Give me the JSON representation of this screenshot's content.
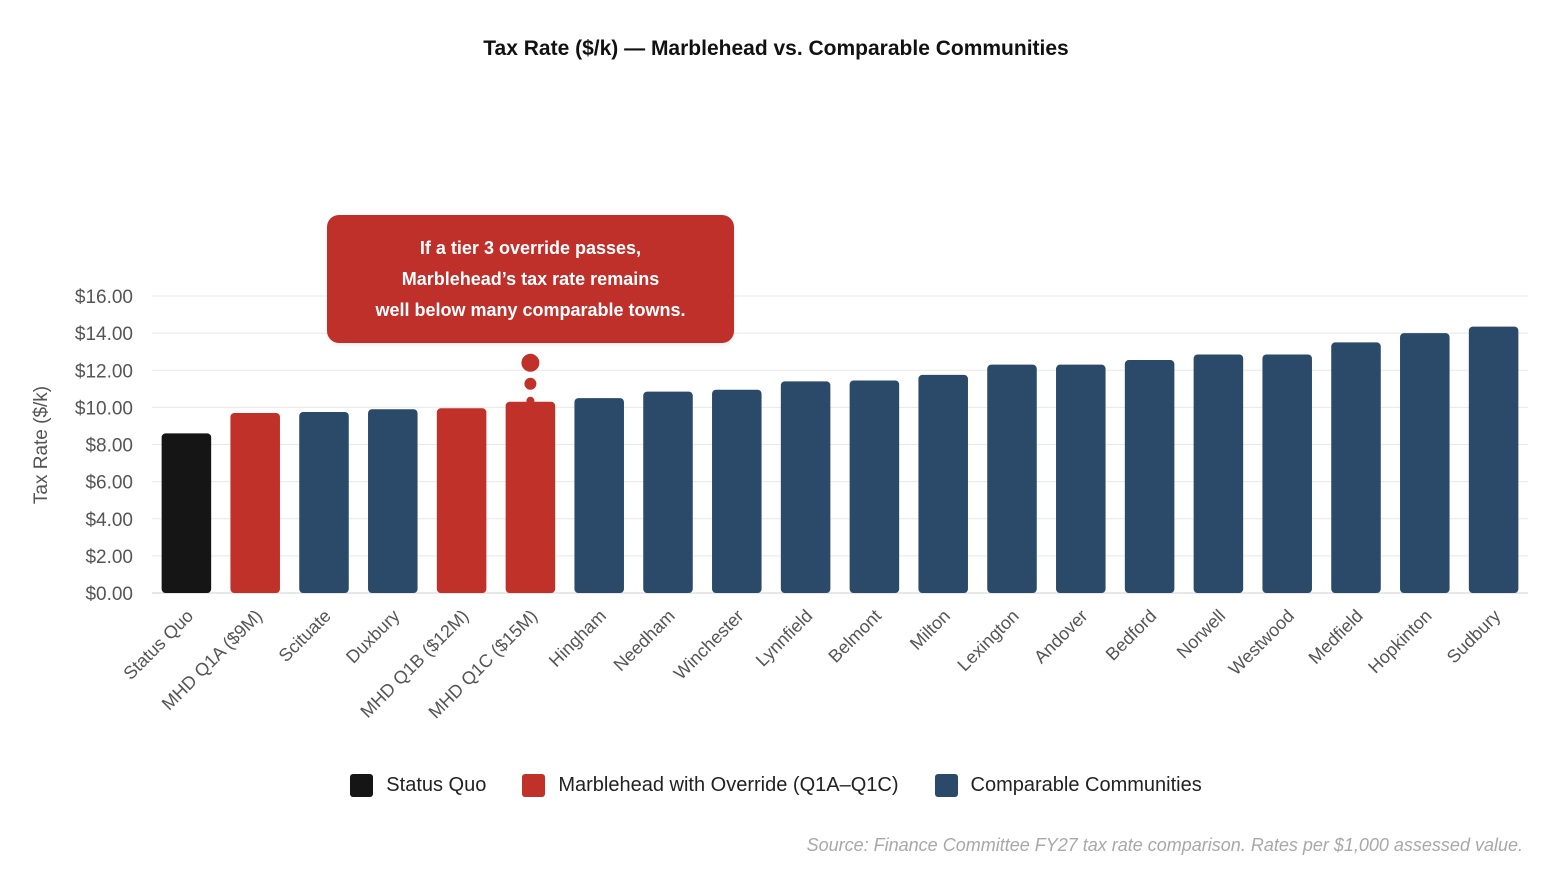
{
  "chart_data": {
    "type": "bar",
    "title": "Tax Rate ($/k) — Marblehead vs. Comparable Communities",
    "ylabel": "Tax Rate ($/k)",
    "xlabel": "",
    "ylim": [
      0,
      16
    ],
    "y_ticks": [
      "$0.00",
      "$2.00",
      "$4.00",
      "$6.00",
      "$8.00",
      "$10.00",
      "$12.00",
      "$14.00",
      "$16.00"
    ],
    "categories": [
      "Status Quo",
      "MHD Q1A ($9M)",
      "Scituate",
      "Duxbury",
      "MHD Q1B ($12M)",
      "MHD Q1C ($15M)",
      "Hingham",
      "Needham",
      "Winchester",
      "Lynnfield",
      "Belmont",
      "Milton",
      "Lexington",
      "Andover",
      "Bedford",
      "Norwell",
      "Westwood",
      "Medfield",
      "Hopkinton",
      "Sudbury"
    ],
    "values": [
      8.6,
      9.7,
      9.75,
      9.9,
      9.95,
      10.3,
      10.5,
      10.85,
      10.95,
      11.4,
      11.45,
      11.75,
      12.3,
      12.3,
      12.55,
      12.85,
      12.85,
      13.5,
      14.0,
      14.35
    ],
    "groups": [
      "status_quo",
      "override",
      "comparable",
      "comparable",
      "override",
      "override",
      "comparable",
      "comparable",
      "comparable",
      "comparable",
      "comparable",
      "comparable",
      "comparable",
      "comparable",
      "comparable",
      "comparable",
      "comparable",
      "comparable",
      "comparable",
      "comparable"
    ],
    "grid": true,
    "legend_position": "bottom"
  },
  "colors": {
    "status_quo": "#151515",
    "override": "#bf3129",
    "comparable": "#2b4a69"
  },
  "legend": [
    {
      "label": "Status Quo",
      "color": "#151515"
    },
    {
      "label": "Marblehead with Override (Q1A–Q1C)",
      "color": "#bf3129"
    },
    {
      "label": "Comparable Communities",
      "color": "#2b4a69"
    }
  ],
  "callout": {
    "lines": [
      "If a tier 3 override passes,",
      "Marblehead’s tax rate remains",
      "well below many comparable towns."
    ]
  },
  "source": "Source: Finance Committee FY27 tax rate comparison. Rates per $1,000 assessed value."
}
